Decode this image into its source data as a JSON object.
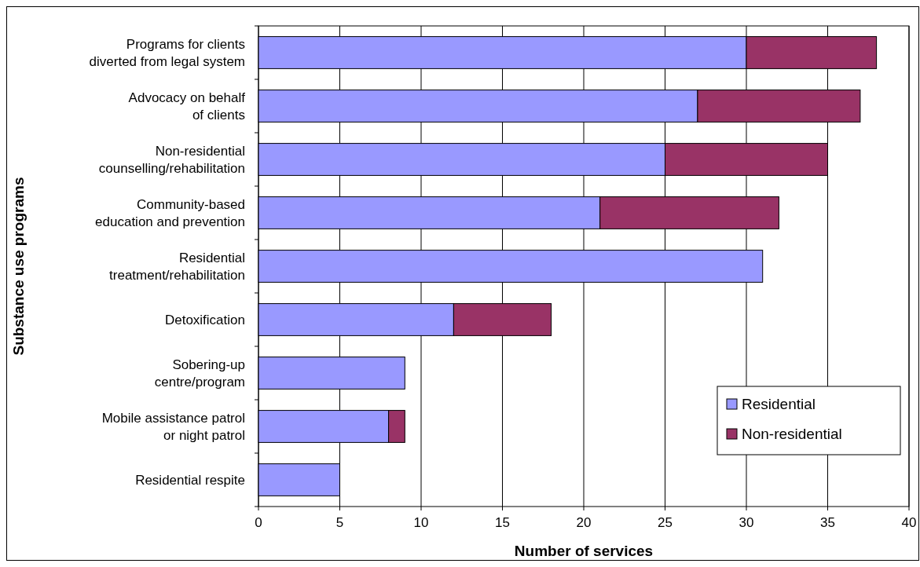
{
  "chart_data": {
    "type": "bar",
    "orientation": "horizontal",
    "stacked": true,
    "xlabel": "Number of services",
    "ylabel": "Substance use programs",
    "categories": [
      "Programs for clients\ndiverted from legal system",
      "Advocacy on behalf\nof clients",
      "Non-residential\ncounselling/rehabilitation",
      "Community-based\neducation and prevention",
      "Residential\ntreatment/rehabilitation",
      "Detoxification",
      "Sobering-up\ncentre/program",
      "Mobile assistance patrol\nor night patrol",
      "Residential respite"
    ],
    "series": [
      {
        "name": "Residential",
        "color": "#9999ff",
        "values": [
          30,
          27,
          25,
          21,
          31,
          12,
          9,
          8,
          5
        ]
      },
      {
        "name": "Non-residential",
        "color": "#993366",
        "values": [
          8,
          10,
          10,
          11,
          null,
          6,
          null,
          1,
          null
        ]
      }
    ],
    "xlim": [
      0,
      40
    ],
    "xticks": [
      0,
      5,
      10,
      15,
      20,
      25,
      30,
      35,
      40
    ],
    "grid": "x",
    "legend": "bottom right"
  }
}
